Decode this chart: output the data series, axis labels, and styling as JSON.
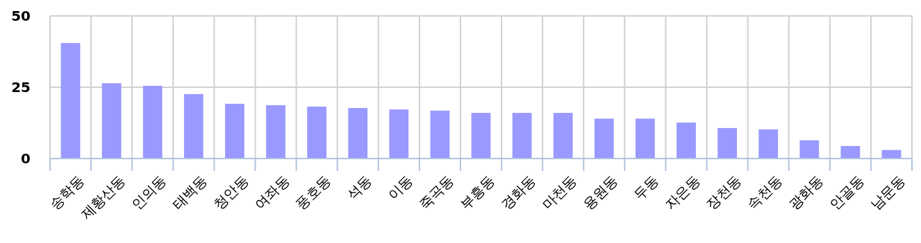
{
  "chart_data": {
    "type": "bar",
    "categories": [
      "송학동",
      "제황산동",
      "인의동",
      "태백동",
      "청안동",
      "여좌동",
      "풍호동",
      "석동",
      "이동",
      "죽곡동",
      "부흥동",
      "경화동",
      "마천동",
      "용원동",
      "두동",
      "자은동",
      "장천동",
      "속천동",
      "광화동",
      "안골동",
      "남문동"
    ],
    "values": [
      40.5,
      26.4,
      25.5,
      22.6,
      19.2,
      18.7,
      18.2,
      17.7,
      17.2,
      16.8,
      16,
      16,
      16,
      14,
      14,
      12.6,
      10.7,
      10.2,
      6.4,
      4.4,
      3
    ],
    "color": "#9999ff",
    "ylim": [
      0,
      50
    ],
    "yticks": [
      0,
      25,
      50
    ],
    "grid": true
  }
}
